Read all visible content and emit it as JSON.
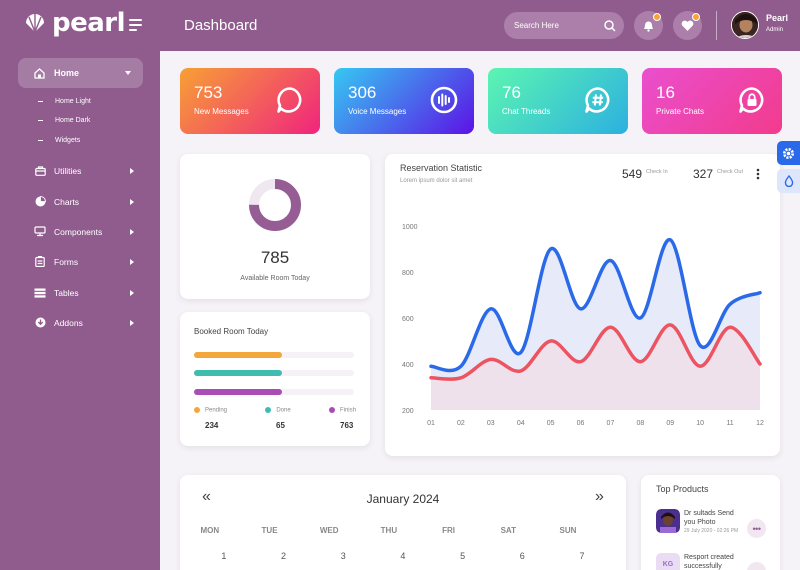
{
  "brand": {
    "name": "pearl"
  },
  "header": {
    "title": "Dashboard",
    "search_placeholder": "Search Here",
    "user": {
      "name": "Pearl",
      "role": "Admin"
    }
  },
  "sidebar": {
    "home": {
      "label": "Home",
      "subitems": [
        "Home Light",
        "Home Dark",
        "Widgets"
      ]
    },
    "items": [
      {
        "label": "Utilities",
        "icon": "briefcase-icon"
      },
      {
        "label": "Charts",
        "icon": "pie-chart-icon"
      },
      {
        "label": "Components",
        "icon": "layers-icon"
      },
      {
        "label": "Forms",
        "icon": "form-icon"
      },
      {
        "label": "Tables",
        "icon": "table-icon"
      },
      {
        "label": "Addons",
        "icon": "download-icon"
      }
    ]
  },
  "stats": [
    {
      "value": "753",
      "label": "New Messages",
      "icon": "message-circle-icon",
      "gradient": [
        "#f7a035",
        "#f0247e"
      ]
    },
    {
      "value": "306",
      "label": "Voice Messages",
      "icon": "voice-wave-icon",
      "gradient": [
        "#36c9f2",
        "#5c12e6"
      ]
    },
    {
      "value": "76",
      "label": "Chat Threads",
      "icon": "hashtag-icon",
      "gradient": [
        "#5cf5b1",
        "#2cb0e0"
      ]
    },
    {
      "value": "16",
      "label": "Private Chats",
      "icon": "lock-chat-icon",
      "gradient": [
        "#ea4fce",
        "#f23b8c"
      ]
    }
  ],
  "room": {
    "value": "785",
    "label": "Available Room Today",
    "fraction": 0.75
  },
  "booked": {
    "title": "Booked Room Today",
    "bars": [
      {
        "fraction": 0.55,
        "color": "#f3a63c"
      },
      {
        "fraction": 0.55,
        "color": "#3fbcb0"
      },
      {
        "fraction": 0.55,
        "color": "#a94cb5"
      }
    ],
    "legend": [
      {
        "label": "Pending",
        "value": "234",
        "color": "#f3a63c"
      },
      {
        "label": "Done",
        "value": "65",
        "color": "#3fbcb0"
      },
      {
        "label": "Finish",
        "value": "763",
        "color": "#a94cb5"
      }
    ]
  },
  "reservation": {
    "title": "Reservation Statistic",
    "subtitle": "Lorem ipsum dolor sit amet",
    "check_in": {
      "value": "549",
      "label": "Check In"
    },
    "check_out": {
      "value": "327",
      "label": "Check Out"
    }
  },
  "chart_data": {
    "type": "area",
    "x": [
      "01",
      "02",
      "03",
      "04",
      "05",
      "06",
      "07",
      "08",
      "09",
      "10",
      "11",
      "12"
    ],
    "ylim": [
      200,
      1000
    ],
    "yticks": [
      "1000",
      "800",
      "600",
      "400",
      "200"
    ],
    "grid": false,
    "series": [
      {
        "color": "#2a6ae8",
        "fill": "#e7eaf8",
        "values": [
          390,
          390,
          640,
          450,
          900,
          640,
          850,
          600,
          940,
          480,
          660,
          710
        ]
      },
      {
        "color": "#ec5462",
        "fill": "#efe1ec",
        "values": [
          340,
          340,
          420,
          370,
          500,
          410,
          560,
          410,
          570,
          390,
          560,
          400
        ]
      }
    ]
  },
  "calendar": {
    "month": "January 2024",
    "prev": "«",
    "next": "»",
    "days": [
      "MON",
      "TUE",
      "WED",
      "THU",
      "FRI",
      "SAT",
      "SUN"
    ],
    "dates": [
      "1",
      "2",
      "3",
      "4",
      "5",
      "6",
      "7"
    ]
  },
  "top_products": {
    "title": "Top Products",
    "items": [
      {
        "title": "Dr sultads Send you Photo",
        "time": "29 July 2020 - 02:26 PM"
      },
      {
        "title": "Resport created successfully",
        "initials": "KG"
      }
    ]
  },
  "colors": {
    "primary": "#905c8e",
    "accent_blue": "#2a6ae8"
  }
}
